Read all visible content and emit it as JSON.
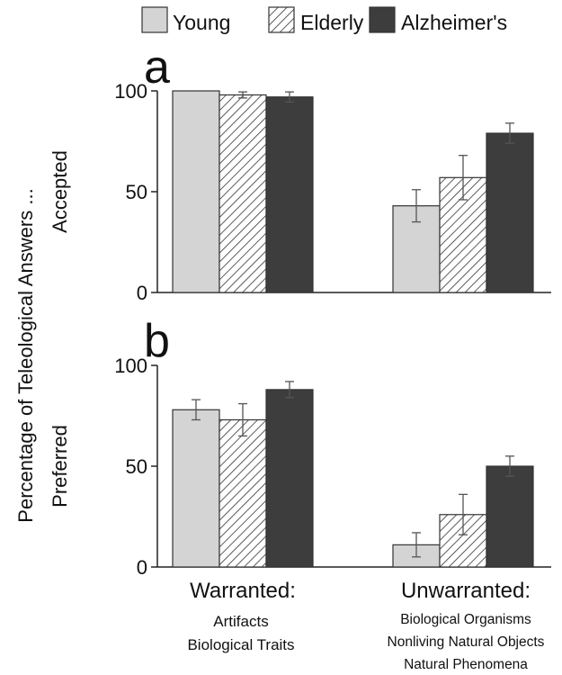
{
  "legend": {
    "placement": "top-center",
    "entries": [
      {
        "label": "Young",
        "color": "#d4d4d4",
        "pattern": "solid"
      },
      {
        "label": "Elderly",
        "color": "#ffffff",
        "pattern": "diagonal-hatch"
      },
      {
        "label": "Alzheimer's",
        "color": "#3d3d3d",
        "pattern": "solid"
      }
    ]
  },
  "shared_ylabel": "Percentage of Teleological Answers ...",
  "x_groups": [
    {
      "title": "Warranted:",
      "lines": [
        "Artifacts",
        "Biological Traits"
      ]
    },
    {
      "title": "Unwarranted:",
      "lines": [
        "Biological Organisms",
        "Nonliving Natural Objects",
        "Natural Phenomena"
      ]
    }
  ],
  "chart_data": [
    {
      "type": "bar",
      "panel_letter": "a",
      "ylabel": "Accepted",
      "categories": [
        "Warranted",
        "Unwarranted"
      ],
      "ylim": [
        0,
        100
      ],
      "yticks": [
        0,
        50,
        100
      ],
      "grid": false,
      "series": [
        {
          "name": "Young",
          "values": [
            100,
            43
          ],
          "errors": [
            0,
            8
          ]
        },
        {
          "name": "Elderly",
          "values": [
            98,
            57
          ],
          "errors": [
            1.5,
            11
          ]
        },
        {
          "name": "Alzheimer's",
          "values": [
            97,
            79
          ],
          "errors": [
            2.5,
            5
          ]
        }
      ]
    },
    {
      "type": "bar",
      "panel_letter": "b",
      "ylabel": "Preferred",
      "categories": [
        "Warranted",
        "Unwarranted"
      ],
      "ylim": [
        0,
        100
      ],
      "yticks": [
        0,
        50,
        100
      ],
      "grid": false,
      "series": [
        {
          "name": "Young",
          "values": [
            78,
            11
          ],
          "errors": [
            5,
            6
          ]
        },
        {
          "name": "Elderly",
          "values": [
            73,
            26
          ],
          "errors": [
            8,
            10
          ]
        },
        {
          "name": "Alzheimer's",
          "values": [
            88,
            50
          ],
          "errors": [
            4,
            5
          ]
        }
      ]
    }
  ]
}
